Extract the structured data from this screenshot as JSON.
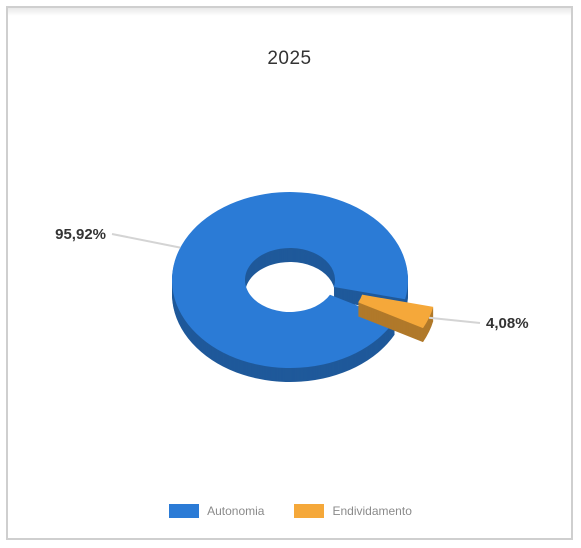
{
  "chart_data": {
    "type": "pie",
    "title": "2025",
    "donut": true,
    "three_d": true,
    "categories": [
      "Autonomia",
      "Endividamento"
    ],
    "values": [
      95.92,
      4.08
    ],
    "labels": [
      "95,92%",
      "4,08%"
    ],
    "colors": [
      "#2b7bd6",
      "#f5a83a"
    ],
    "legend": "bottom-center"
  }
}
